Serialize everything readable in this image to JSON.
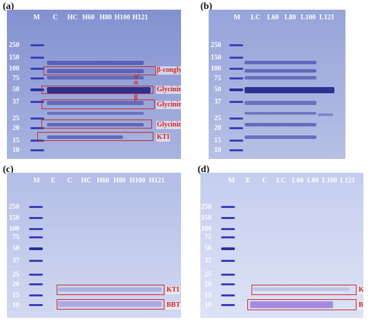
{
  "panels": {
    "a": {
      "label": "(a)",
      "lanes": [
        "M",
        "C",
        "HC",
        "H60",
        "H80",
        "H100",
        "H121"
      ],
      "mw": [
        "250",
        "150",
        "100",
        "75",
        "50",
        "37",
        "25",
        "20",
        "15",
        "10"
      ],
      "annotations": {
        "b_conglycinin": "β-conglycinin",
        "alpha_prime": "α'",
        "alpha": "α",
        "glycinin": "Glycinin",
        "beta": "β",
        "glycinin_a": "Glycinin A",
        "glycinin_b": "Glycinin B",
        "kti": "KTI"
      }
    },
    "b": {
      "label": "(b)",
      "lanes": [
        "M",
        "LC",
        "L60",
        "L80",
        "L100",
        "L121"
      ],
      "mw": [
        "250",
        "150",
        "100",
        "75",
        "50",
        "37",
        "25",
        "20",
        "15",
        "10"
      ]
    },
    "c": {
      "label": "(c)",
      "lanes": [
        "M",
        "E",
        "C",
        "HC",
        "H60",
        "H80",
        "H100",
        "H121"
      ],
      "mw": [
        "250",
        "150",
        "100",
        "75",
        "50",
        "37",
        "25",
        "20",
        "15",
        "10"
      ],
      "annotations": {
        "kti": "KTI",
        "bbti": "BBTI"
      }
    },
    "d": {
      "label": "(d)",
      "lanes": [
        "M",
        "E",
        "C",
        "LC",
        "L60",
        "L80",
        "L100",
        "L121"
      ],
      "mw": [
        "250",
        "150",
        "100",
        "75",
        "50",
        "37",
        "25",
        "20",
        "15",
        "10"
      ],
      "annotations": {
        "kti": "KTI",
        "bbti": "BBTI"
      }
    }
  },
  "colors": {
    "gel_top": "#8f9ed6",
    "gel_mid": "#a8b4e2",
    "gel_light": "#c9d0ec",
    "band": "#2b2f9e",
    "marker": "#3b3fb8",
    "annotation": "#c62828"
  }
}
